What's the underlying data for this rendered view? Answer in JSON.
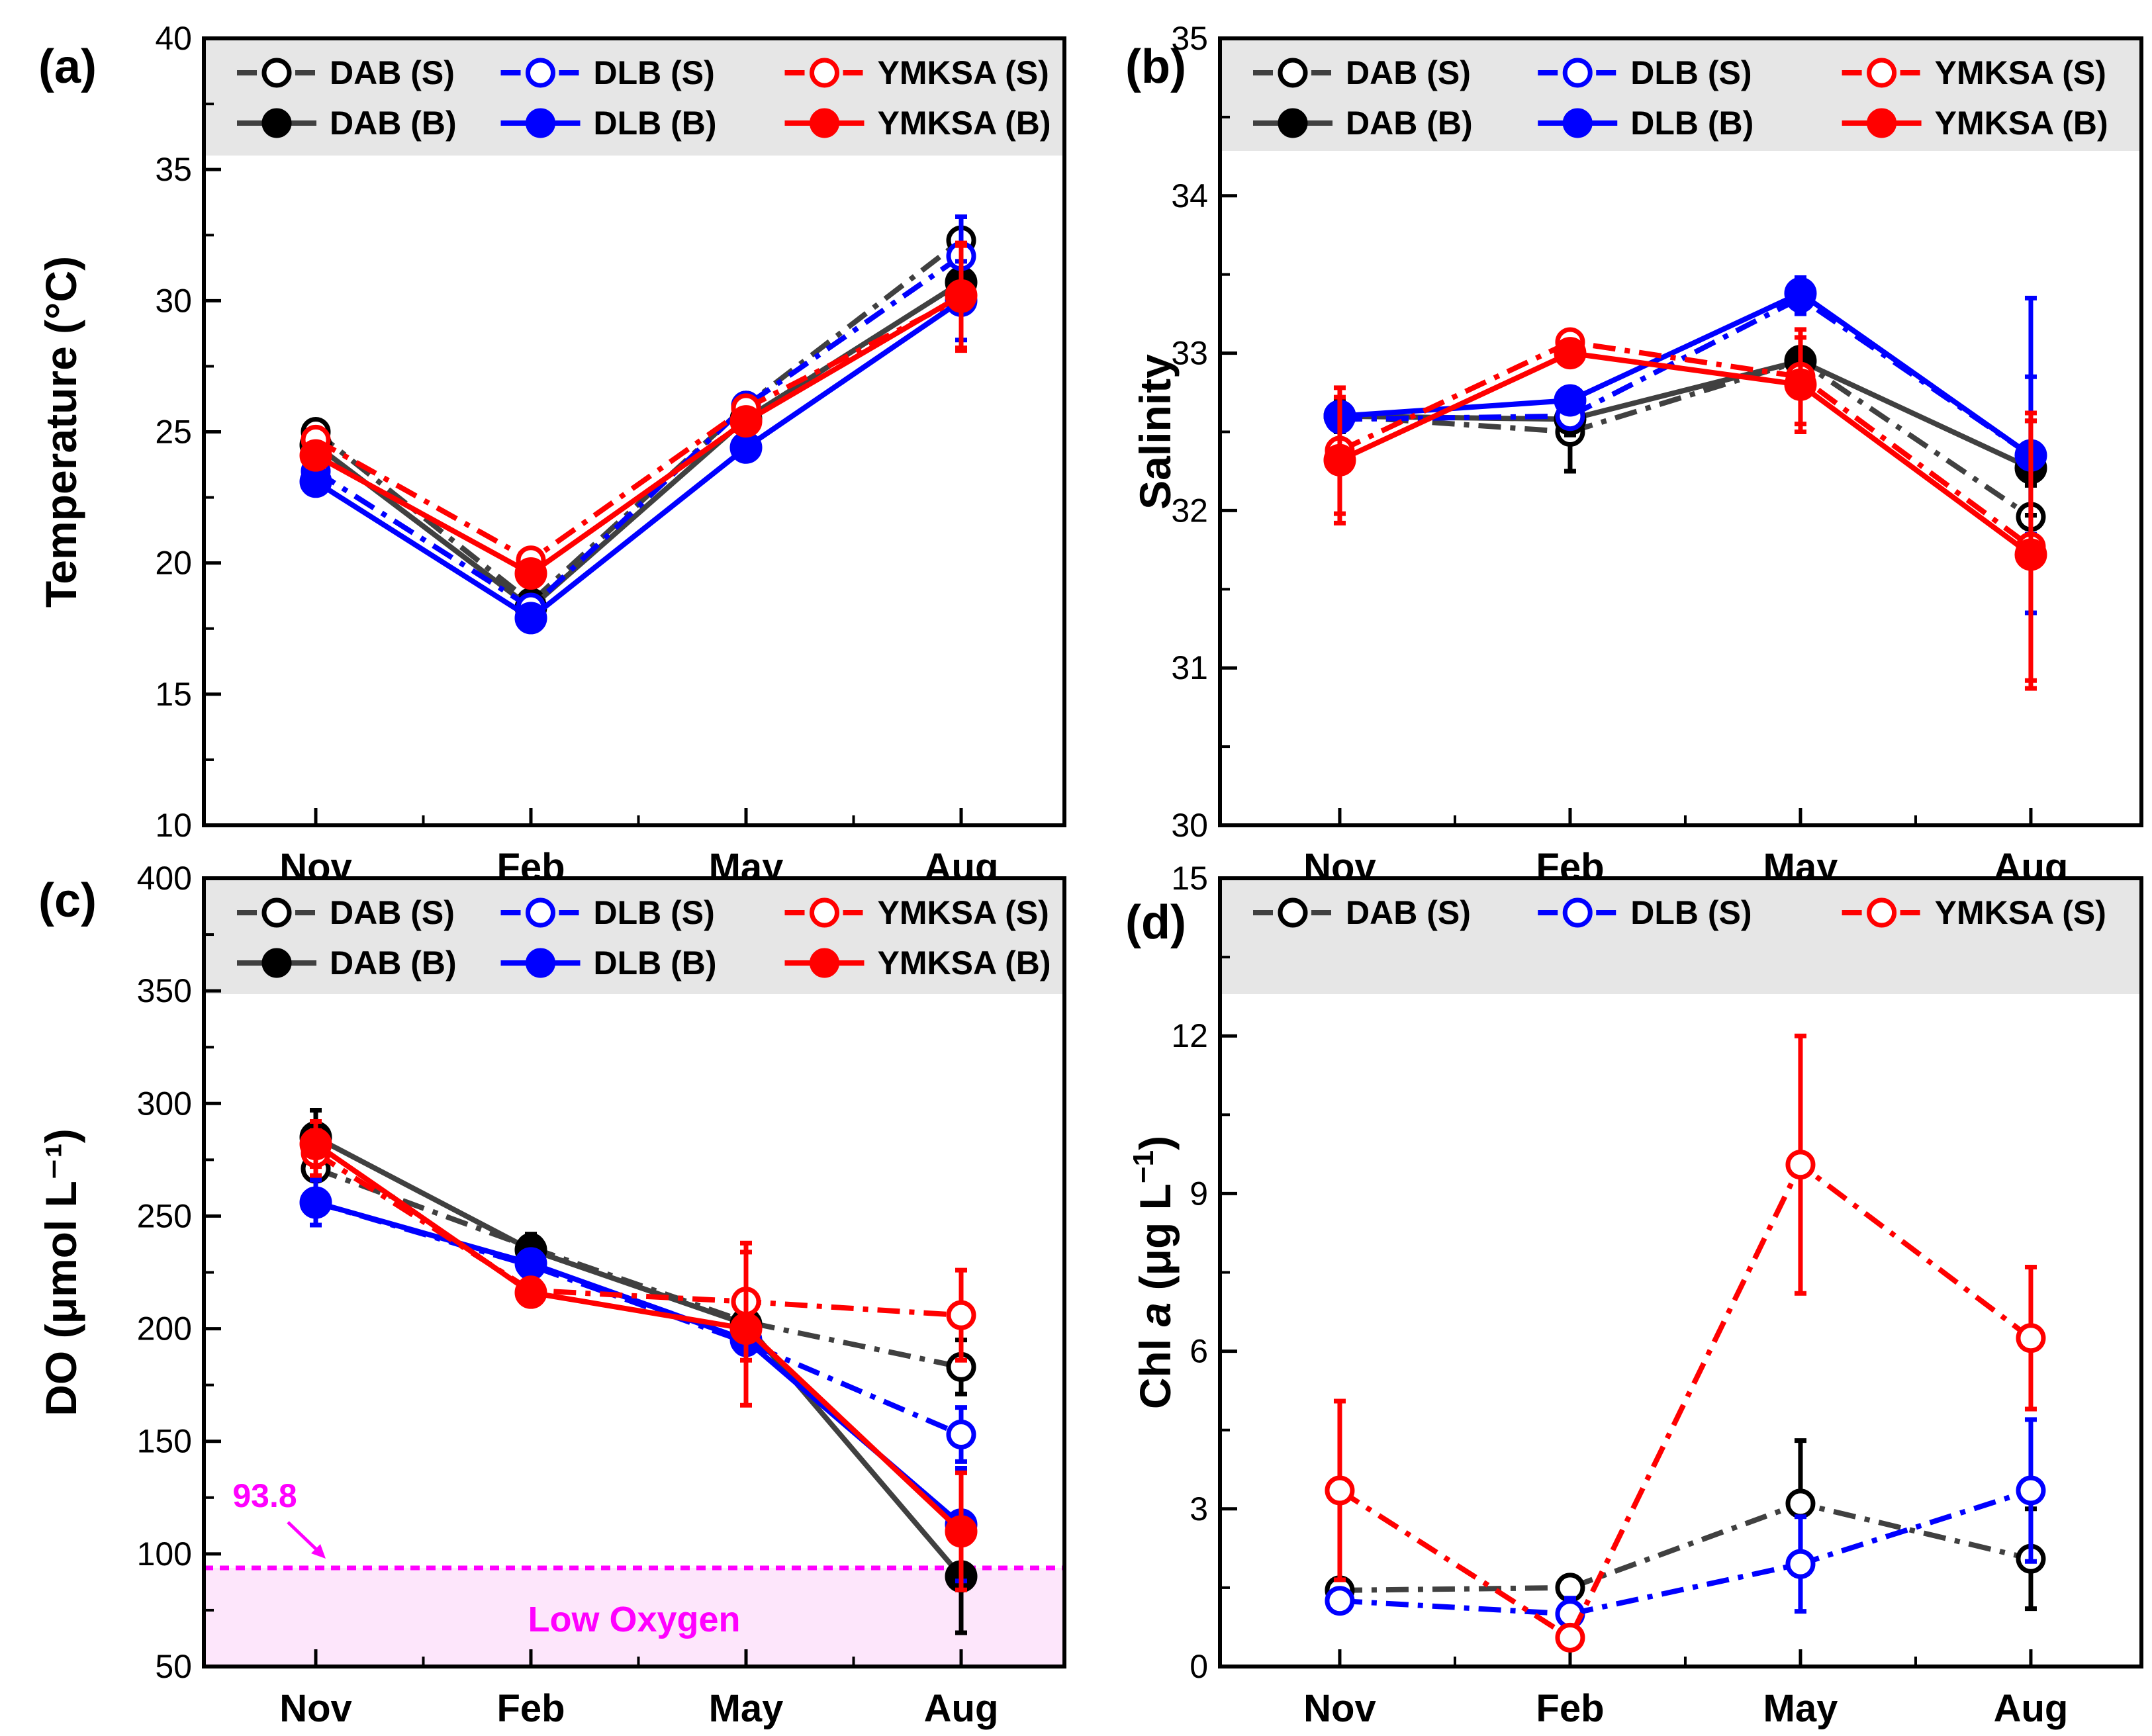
{
  "figure": {
    "months": [
      "Nov",
      "Feb",
      "May",
      "Aug"
    ],
    "legend_labels": {
      "dab_s": "DAB (S)",
      "dab_b": "DAB (B)",
      "dlb_s": "DLB (S)",
      "dlb_b": "DLB (B)",
      "ymksa_s": "YMKSA (S)",
      "ymksa_b": "YMKSA (B)"
    },
    "colors": {
      "dab": "#000000",
      "dab_line": "#404040",
      "dlb": "#0000ff",
      "ymksa": "#ff0000",
      "legend_bg": "#e6e6e6",
      "threshold": "#ff00ff",
      "low_oxygen_fill": "#fde6fb"
    }
  },
  "chart_data": [
    {
      "id": "a",
      "panel_label": "(a)",
      "type": "line",
      "ylabel": "Temperature (°C)",
      "xlabel": "",
      "categories": [
        "Nov",
        "Feb",
        "May",
        "Aug"
      ],
      "ylim": [
        10,
        40
      ],
      "yticks": [
        10,
        15,
        20,
        25,
        30,
        35,
        40
      ],
      "legend": "top",
      "series": [
        {
          "key": "dab_s",
          "name": "DAB (S)",
          "site": "DAB",
          "layer": "S",
          "values": [
            25.0,
            18.5,
            26.0,
            32.3
          ],
          "errors": [
            0,
            0,
            0,
            0
          ]
        },
        {
          "key": "dab_b",
          "name": "DAB (B)",
          "site": "DAB",
          "layer": "B",
          "values": [
            24.5,
            18.3,
            25.5,
            30.7
          ],
          "errors": [
            0,
            0,
            0,
            0
          ]
        },
        {
          "key": "dlb_s",
          "name": "DLB (S)",
          "site": "DLB",
          "layer": "S",
          "values": [
            23.5,
            18.3,
            26.0,
            31.7
          ],
          "errors": [
            0,
            0,
            0,
            1.5
          ]
        },
        {
          "key": "dlb_b",
          "name": "DLB (B)",
          "site": "DLB",
          "layer": "B",
          "values": [
            23.1,
            17.9,
            24.4,
            30.0
          ],
          "errors": [
            0,
            0,
            0,
            1.5
          ]
        },
        {
          "key": "ymksa_s",
          "name": "YMKSA (S)",
          "site": "YMKSA",
          "layer": "S",
          "values": [
            24.7,
            20.1,
            25.9,
            30.1
          ],
          "errors": [
            0,
            0,
            0,
            2.0
          ]
        },
        {
          "key": "ymksa_b",
          "name": "YMKSA (B)",
          "site": "YMKSA",
          "layer": "B",
          "values": [
            24.1,
            19.6,
            25.4,
            30.2
          ],
          "errors": [
            0,
            0,
            0,
            2.0
          ]
        }
      ]
    },
    {
      "id": "b",
      "panel_label": "(b)",
      "type": "line",
      "ylabel": "Salinity",
      "xlabel": "",
      "categories": [
        "Nov",
        "Feb",
        "May",
        "Aug"
      ],
      "ylim": [
        30,
        35
      ],
      "yticks": [
        30,
        31,
        32,
        33,
        34,
        35
      ],
      "legend": "top",
      "series": [
        {
          "key": "dab_s",
          "name": "DAB (S)",
          "site": "DAB",
          "layer": "S",
          "values": [
            32.6,
            32.5,
            32.95,
            31.96
          ],
          "errors": [
            0,
            0.25,
            0,
            0.2
          ]
        },
        {
          "key": "dab_b",
          "name": "DAB (B)",
          "site": "DAB",
          "layer": "B",
          "values": [
            32.6,
            32.58,
            32.95,
            32.27
          ],
          "errors": [
            0.1,
            0.1,
            0,
            0.3
          ]
        },
        {
          "key": "dlb_s",
          "name": "DLB (S)",
          "site": "DLB",
          "layer": "S",
          "values": [
            32.58,
            32.6,
            33.35,
            32.35
          ],
          "errors": [
            0.05,
            0.05,
            0.1,
            0.5
          ]
        },
        {
          "key": "dlb_b",
          "name": "DLB (B)",
          "site": "DLB",
          "layer": "B",
          "values": [
            32.6,
            32.7,
            33.38,
            32.35
          ],
          "errors": [
            0.05,
            0.05,
            0.1,
            1.0
          ]
        },
        {
          "key": "ymksa_s",
          "name": "YMKSA (S)",
          "site": "YMKSA",
          "layer": "S",
          "values": [
            32.38,
            33.07,
            32.85,
            31.77
          ],
          "errors": [
            0.4,
            0.05,
            0.3,
            0.85
          ]
        },
        {
          "key": "ymksa_b",
          "name": "YMKSA (B)",
          "site": "YMKSA",
          "layer": "B",
          "values": [
            32.32,
            33.0,
            32.8,
            31.72
          ],
          "errors": [
            0.4,
            0.05,
            0.3,
            0.85
          ]
        }
      ]
    },
    {
      "id": "c",
      "panel_label": "(c)",
      "type": "line",
      "ylabel": "DO (μmol L⁻¹)",
      "xlabel": "",
      "categories": [
        "Nov",
        "Feb",
        "May",
        "Aug"
      ],
      "ylim": [
        50,
        400
      ],
      "yticks": [
        50,
        100,
        150,
        200,
        250,
        300,
        350,
        400
      ],
      "legend": "top",
      "threshold": {
        "value": 93.8,
        "label": "93.8",
        "region_label": "Low Oxygen"
      },
      "series": [
        {
          "key": "dab_s",
          "name": "DAB (S)",
          "site": "DAB",
          "layer": "S",
          "values": [
            271,
            236,
            203,
            183
          ],
          "errors": [
            0,
            6,
            0,
            12
          ]
        },
        {
          "key": "dab_b",
          "name": "DAB (B)",
          "site": "DAB",
          "layer": "B",
          "values": [
            285,
            235,
            202,
            90
          ],
          "errors": [
            12,
            6,
            0,
            25
          ]
        },
        {
          "key": "dlb_s",
          "name": "DLB (S)",
          "site": "DLB",
          "layer": "S",
          "values": [
            256,
            228,
            194,
            153
          ],
          "errors": [
            0,
            5,
            0,
            12
          ]
        },
        {
          "key": "dlb_b",
          "name": "DLB (B)",
          "site": "DLB",
          "layer": "B",
          "values": [
            256,
            229,
            195,
            113
          ],
          "errors": [
            10,
            5,
            0,
            25
          ]
        },
        {
          "key": "ymksa_s",
          "name": "YMKSA (S)",
          "site": "YMKSA",
          "layer": "S",
          "values": [
            278,
            217,
            212,
            206
          ],
          "errors": [
            10,
            4,
            26,
            20
          ]
        },
        {
          "key": "ymksa_b",
          "name": "YMKSA (B)",
          "site": "YMKSA",
          "layer": "B",
          "values": [
            282,
            216,
            200,
            110
          ],
          "errors": [
            10,
            4,
            34,
            26
          ]
        }
      ]
    },
    {
      "id": "d",
      "panel_label": "(d)",
      "type": "line",
      "ylabel": "Chl a (μg L⁻¹)",
      "ylabel_base": "Chl ",
      "ylabel_italic": "a",
      "ylabel_rest": " (μg L",
      "ylabel_sup": "−1",
      "xlabel": "",
      "categories": [
        "Nov",
        "Feb",
        "May",
        "Aug"
      ],
      "ylim": [
        0,
        15
      ],
      "yticks": [
        0,
        3,
        6,
        9,
        12,
        15
      ],
      "legend": "top",
      "series": [
        {
          "key": "dab_s",
          "name": "DAB (S)",
          "site": "DAB",
          "layer": "S",
          "values": [
            1.45,
            1.5,
            3.1,
            2.05
          ],
          "errors": [
            0.2,
            0.2,
            1.2,
            0.95
          ]
        },
        {
          "key": "dlb_s",
          "name": "DLB (S)",
          "site": "DLB",
          "layer": "S",
          "values": [
            1.25,
            1.0,
            1.95,
            3.35
          ],
          "errors": [
            0.15,
            0.3,
            0.9,
            1.35
          ]
        },
        {
          "key": "ymksa_s",
          "name": "YMKSA (S)",
          "site": "YMKSA",
          "layer": "S",
          "values": [
            3.35,
            0.55,
            9.55,
            6.25
          ],
          "errors": [
            1.7,
            0.1,
            2.45,
            1.35
          ]
        }
      ]
    }
  ]
}
